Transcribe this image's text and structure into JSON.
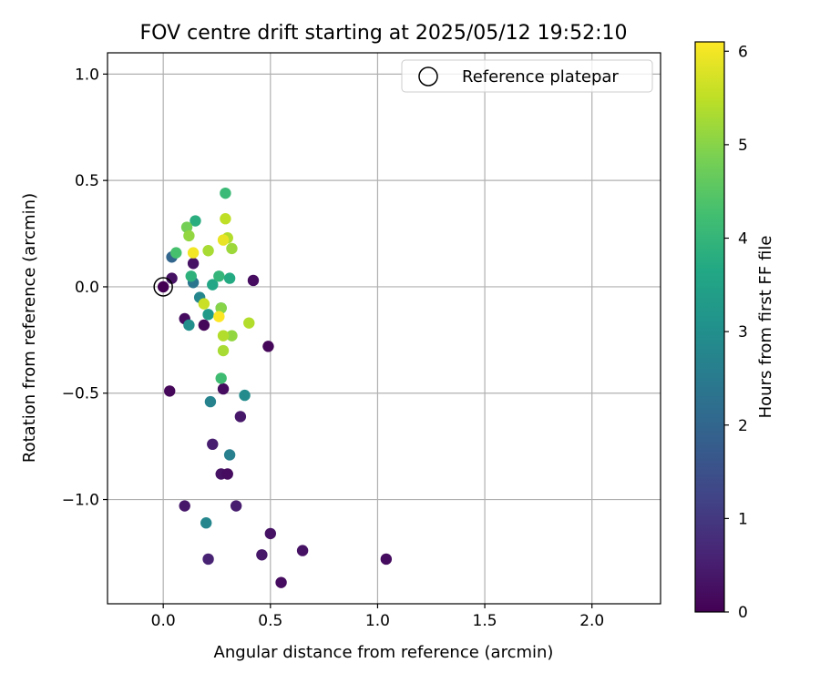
{
  "chart_data": {
    "type": "scatter",
    "title": "FOV centre drift starting at 2025/05/12 19:52:10",
    "xlabel": "Angular distance from reference (arcmin)",
    "ylabel": "Rotation from reference (arcmin)",
    "xlim": [
      -0.26,
      2.32
    ],
    "ylim": [
      -1.49,
      1.1
    ],
    "xticks": [
      0.0,
      0.5,
      1.0,
      1.5,
      2.0
    ],
    "xtick_labels": [
      "0.0",
      "0.5",
      "1.0",
      "1.5",
      "2.0"
    ],
    "yticks": [
      1.0,
      0.5,
      0.0,
      -0.5,
      -1.0
    ],
    "ytick_labels": [
      "1.0",
      "0.5",
      "0.0",
      "−0.5",
      "−1.0"
    ],
    "grid": true,
    "legend": {
      "position": "top-right",
      "entries": [
        "Reference platepar"
      ]
    },
    "reference_point": {
      "x": 0.0,
      "y": 0.0
    },
    "colorbar": {
      "label": "Hours from first FF file",
      "min": 0,
      "max": 6.1,
      "ticks": [
        0,
        1,
        2,
        3,
        4,
        5,
        6
      ],
      "tick_labels": [
        "0",
        "1",
        "2",
        "3",
        "4",
        "5",
        "6"
      ],
      "colormap": "viridis"
    },
    "points": [
      {
        "x": 0.0,
        "y": 0.0,
        "h": 0.0
      },
      {
        "x": 0.04,
        "y": 0.04,
        "h": 0.3
      },
      {
        "x": 0.03,
        "y": -0.49,
        "h": 0.1
      },
      {
        "x": 0.1,
        "y": -0.15,
        "h": 0.2
      },
      {
        "x": 0.19,
        "y": -0.18,
        "h": 0.1
      },
      {
        "x": 0.14,
        "y": 0.11,
        "h": 0.3
      },
      {
        "x": 0.42,
        "y": 0.03,
        "h": 0.2
      },
      {
        "x": 0.49,
        "y": -0.28,
        "h": 0.1
      },
      {
        "x": 0.28,
        "y": -0.48,
        "h": 0.2
      },
      {
        "x": 0.36,
        "y": -0.61,
        "h": 0.4
      },
      {
        "x": 0.23,
        "y": -0.74,
        "h": 0.5
      },
      {
        "x": 0.27,
        "y": -0.88,
        "h": 0.3
      },
      {
        "x": 0.3,
        "y": -0.88,
        "h": 0.2
      },
      {
        "x": 0.1,
        "y": -1.03,
        "h": 0.4
      },
      {
        "x": 0.34,
        "y": -1.03,
        "h": 0.5
      },
      {
        "x": 0.5,
        "y": -1.16,
        "h": 0.3
      },
      {
        "x": 0.21,
        "y": -1.28,
        "h": 0.6
      },
      {
        "x": 0.46,
        "y": -1.26,
        "h": 0.4
      },
      {
        "x": 0.65,
        "y": -1.24,
        "h": 0.3
      },
      {
        "x": 0.55,
        "y": -1.39,
        "h": 0.2
      },
      {
        "x": 1.04,
        "y": -1.28,
        "h": 0.2
      },
      {
        "x": 0.04,
        "y": 0.14,
        "h": 2.0
      },
      {
        "x": 0.14,
        "y": 0.02,
        "h": 2.4
      },
      {
        "x": 0.17,
        "y": -0.05,
        "h": 2.8
      },
      {
        "x": 0.12,
        "y": -0.18,
        "h": 3.0
      },
      {
        "x": 0.21,
        "y": -0.13,
        "h": 3.3
      },
      {
        "x": 0.22,
        "y": -0.54,
        "h": 2.7
      },
      {
        "x": 0.38,
        "y": -0.51,
        "h": 2.9
      },
      {
        "x": 0.31,
        "y": -0.79,
        "h": 2.6
      },
      {
        "x": 0.2,
        "y": -1.11,
        "h": 2.8
      },
      {
        "x": 0.27,
        "y": -0.1,
        "h": 3.4
      },
      {
        "x": 0.15,
        "y": 0.31,
        "h": 3.8
      },
      {
        "x": 0.13,
        "y": 0.05,
        "h": 3.9
      },
      {
        "x": 0.23,
        "y": 0.01,
        "h": 3.6
      },
      {
        "x": 0.26,
        "y": 0.05,
        "h": 4.0
      },
      {
        "x": 0.31,
        "y": 0.04,
        "h": 3.7
      },
      {
        "x": 0.29,
        "y": 0.44,
        "h": 4.1
      },
      {
        "x": 0.27,
        "y": -0.43,
        "h": 4.2
      },
      {
        "x": 0.06,
        "y": 0.16,
        "h": 4.3
      },
      {
        "x": 0.11,
        "y": 0.28,
        "h": 4.8
      },
      {
        "x": 0.12,
        "y": 0.24,
        "h": 5.1
      },
      {
        "x": 0.21,
        "y": 0.17,
        "h": 5.3
      },
      {
        "x": 0.32,
        "y": 0.18,
        "h": 5.2
      },
      {
        "x": 0.3,
        "y": 0.23,
        "h": 5.4
      },
      {
        "x": 0.29,
        "y": 0.32,
        "h": 5.5
      },
      {
        "x": 0.27,
        "y": -0.1,
        "h": 5.0
      },
      {
        "x": 0.32,
        "y": -0.23,
        "h": 5.1
      },
      {
        "x": 0.28,
        "y": -0.23,
        "h": 5.4
      },
      {
        "x": 0.28,
        "y": -0.3,
        "h": 5.3
      },
      {
        "x": 0.4,
        "y": -0.17,
        "h": 5.4
      },
      {
        "x": 0.19,
        "y": -0.08,
        "h": 5.6
      },
      {
        "x": 0.14,
        "y": 0.16,
        "h": 6.0
      },
      {
        "x": 0.28,
        "y": 0.22,
        "h": 5.9
      },
      {
        "x": 0.26,
        "y": -0.14,
        "h": 6.1
      }
    ]
  }
}
